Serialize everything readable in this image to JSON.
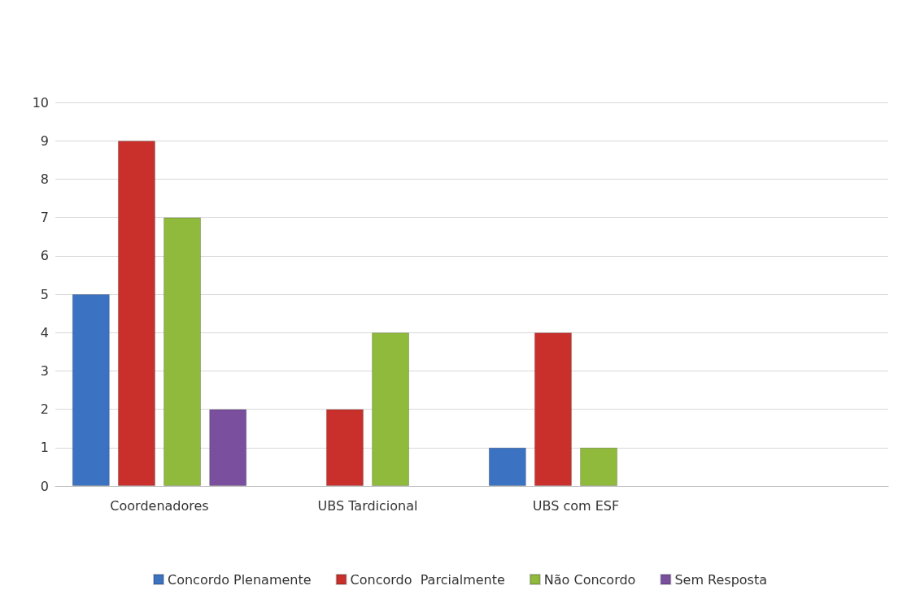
{
  "chart_data": {
    "type": "bar",
    "categories": [
      "Coordenadores",
      "UBS Tardicional",
      "UBS com ESF",
      null
    ],
    "series": [
      {
        "name": "Concordo Plenamente",
        "color": "#3b72c2",
        "values": [
          5,
          null,
          1,
          null
        ]
      },
      {
        "name": "Concordo  Parcialmente",
        "color": "#c9302c",
        "values": [
          9,
          2,
          4,
          null
        ]
      },
      {
        "name": "Não Concordo",
        "color": "#8fba3c",
        "values": [
          7,
          4,
          1,
          null
        ]
      },
      {
        "name": "Sem Resposta",
        "color": "#7a4f9e",
        "values": [
          2,
          null,
          null,
          null
        ]
      }
    ],
    "ylim": [
      0,
      10
    ],
    "yticks": [
      0,
      1,
      2,
      3,
      4,
      5,
      6,
      7,
      8,
      9,
      10
    ],
    "grid": "y",
    "legend": "bottom"
  }
}
